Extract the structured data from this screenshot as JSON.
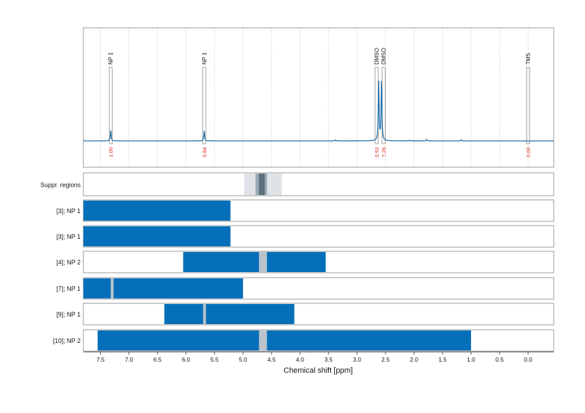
{
  "chart_data": {
    "type": "nmr-spectrum-with-range-bars",
    "xlabel": "Chemical shift [ppm]",
    "x_reversed": true,
    "xlim": [
      7.8,
      -0.45
    ],
    "x_ticks": [
      7.5,
      7.0,
      6.5,
      6.0,
      5.5,
      5.0,
      4.5,
      4.0,
      3.5,
      3.0,
      2.5,
      2.0,
      1.5,
      1.0,
      0.5,
      0.0
    ],
    "x_tick_labels": [
      "7.5",
      "7.0",
      "6.5",
      "6.0",
      "5.5",
      "5.0",
      "4.5",
      "4.0",
      "3.5",
      "3.0",
      "2.5",
      "2.0",
      "1.5",
      "1.0",
      "0.5",
      "0.0"
    ],
    "colors": {
      "spectrum": "#1f6fa8",
      "bar": "#0570b9",
      "integral": "#e0281e",
      "gap": "#b9c3cb",
      "grid": "#c8c8c8"
    },
    "spectrum": {
      "peaks": [
        {
          "ppm": 7.32,
          "height": 0.14,
          "label": "NP 1",
          "integral": "1.00"
        },
        {
          "ppm": 5.68,
          "height": 0.13,
          "label": "NP 1",
          "integral": "0.84"
        },
        {
          "ppm": 2.62,
          "height": 0.78,
          "label": "DMSO",
          "integral": "0.93"
        },
        {
          "ppm": 2.57,
          "height": 0.82,
          "label": "DMSO",
          "integral": "7.26"
        },
        {
          "ppm": 0.0,
          "height": 0.0,
          "label": "TMS",
          "integral": "0.00"
        }
      ],
      "minor_peaks": [
        {
          "ppm": 1.78,
          "height": 0.02
        },
        {
          "ppm": 1.17,
          "height": 0.015
        },
        {
          "ppm": 3.38,
          "height": 0.012
        },
        {
          "ppm": 2.08,
          "height": 0.01
        }
      ]
    },
    "suppressed_regions": {
      "label": "Suppr. regions",
      "light": [
        4.98,
        4.32
      ],
      "mid": [
        4.78,
        4.58
      ],
      "dark": [
        4.72,
        4.62
      ]
    },
    "rows": [
      {
        "label": "[3]; NP 1",
        "start": 7.8,
        "end": 5.22,
        "gaps": []
      },
      {
        "label": "[3]; NP 1",
        "start": 7.8,
        "end": 5.22,
        "gaps": []
      },
      {
        "label": "[4]; NP 2",
        "start": 6.05,
        "end": 3.55,
        "gaps": [
          [
            4.72,
            4.58
          ]
        ]
      },
      {
        "label": "[7]; NP 1",
        "start": 7.8,
        "end": 5.0,
        "gaps": [
          [
            7.32,
            7.27
          ]
        ]
      },
      {
        "label": "[9]; NP 1",
        "start": 6.38,
        "end": 4.1,
        "gaps": [
          [
            5.7,
            5.65
          ]
        ]
      },
      {
        "label": "[10]; NP 2",
        "start": 7.55,
        "end": 1.0,
        "gaps": [
          [
            4.72,
            4.58
          ]
        ]
      }
    ]
  }
}
